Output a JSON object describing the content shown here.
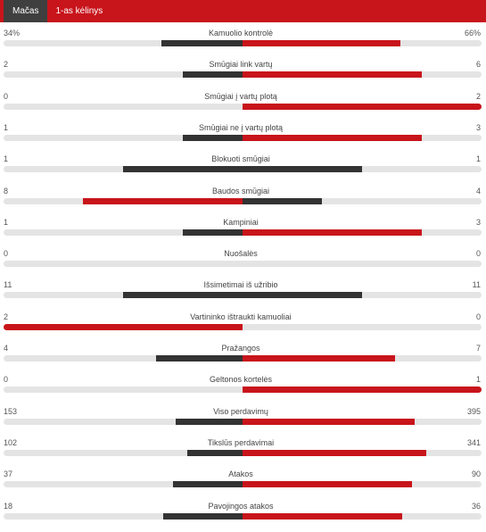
{
  "tabs": [
    {
      "label": "Mačas",
      "active": true
    },
    {
      "label": "1-as kėlinys",
      "active": false
    }
  ],
  "colors": {
    "header": "#c8141b",
    "leading": "#c8141b",
    "trailing": "#333333",
    "track": "#e4e4e4"
  },
  "stats": [
    {
      "label": "Kamuolio kontrolė",
      "home": "34%",
      "away": "66%",
      "home_value": 34,
      "away_value": 66
    },
    {
      "label": "Smūgiai link vartų",
      "home": "2",
      "away": "6",
      "home_value": 2,
      "away_value": 6
    },
    {
      "label": "Smūgiai į vartų plotą",
      "home": "0",
      "away": "2",
      "home_value": 0,
      "away_value": 2
    },
    {
      "label": "Smūgiai ne į vartų plotą",
      "home": "1",
      "away": "3",
      "home_value": 1,
      "away_value": 3
    },
    {
      "label": "Blokuoti smūgiai",
      "home": "1",
      "away": "1",
      "home_value": 1,
      "away_value": 1
    },
    {
      "label": "Baudos smūgiai",
      "home": "8",
      "away": "4",
      "home_value": 8,
      "away_value": 4
    },
    {
      "label": "Kampiniai",
      "home": "1",
      "away": "3",
      "home_value": 1,
      "away_value": 3
    },
    {
      "label": "Nuošalės",
      "home": "0",
      "away": "0",
      "home_value": 0,
      "away_value": 0
    },
    {
      "label": "Išsimetimai iš užribio",
      "home": "11",
      "away": "11",
      "home_value": 11,
      "away_value": 11
    },
    {
      "label": "Vartininko ištraukti kamuoliai",
      "home": "2",
      "away": "0",
      "home_value": 2,
      "away_value": 0
    },
    {
      "label": "Pražangos",
      "home": "4",
      "away": "7",
      "home_value": 4,
      "away_value": 7
    },
    {
      "label": "Geltonos kortelės",
      "home": "0",
      "away": "1",
      "home_value": 0,
      "away_value": 1
    },
    {
      "label": "Viso perdavimų",
      "home": "153",
      "away": "395",
      "home_value": 153,
      "away_value": 395
    },
    {
      "label": "Tikslūs perdavimai",
      "home": "102",
      "away": "341",
      "home_value": 102,
      "away_value": 341
    },
    {
      "label": "Atakos",
      "home": "37",
      "away": "90",
      "home_value": 37,
      "away_value": 90
    },
    {
      "label": "Pavojingos atakos",
      "home": "18",
      "away": "36",
      "home_value": 18,
      "away_value": 36
    }
  ]
}
